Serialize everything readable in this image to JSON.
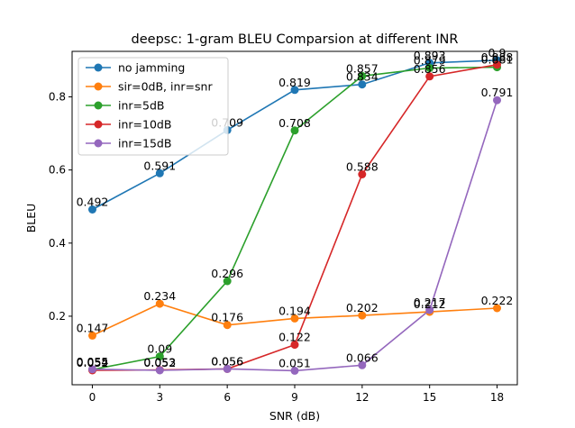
{
  "chart_data": {
    "type": "line",
    "title": "deepsc: 1-gram BLEU Comparsion at different INR",
    "xlabel": "SNR (dB)",
    "ylabel": "BLEU",
    "x": [
      0,
      3,
      6,
      9,
      12,
      15,
      18
    ],
    "xlim": [
      -0.9,
      18.9
    ],
    "ylim": [
      0.0125,
      0.9245
    ],
    "xticks": [
      "0",
      "3",
      "6",
      "9",
      "12",
      "15",
      "18"
    ],
    "yticks": [
      "0.2",
      "0.4",
      "0.6",
      "0.8"
    ],
    "ytick_values": [
      0.2,
      0.4,
      0.6,
      0.8
    ],
    "grid": false,
    "legend": "top-left",
    "series": [
      {
        "name": "no jamming",
        "color": "#1f77b4",
        "values": [
          0.492,
          0.591,
          0.709,
          0.819,
          0.834,
          0.893,
          0.9
        ],
        "labels": [
          "0.492",
          "0.591",
          "0.709",
          "0.819",
          "0.834",
          "0.893",
          "0.9"
        ]
      },
      {
        "name": "sir=0dB, inr=snr",
        "color": "#ff7f0e",
        "values": [
          0.147,
          0.234,
          0.176,
          0.194,
          0.202,
          0.212,
          0.222
        ],
        "labels": [
          "0.147",
          "0.234",
          "0.176",
          "0.194",
          "0.202",
          "0.212",
          "0.222"
        ]
      },
      {
        "name": "inr=5dB",
        "color": "#2ca02c",
        "values": [
          0.054,
          0.09,
          0.296,
          0.708,
          0.857,
          0.879,
          0.881
        ],
        "labels": [
          "0.054",
          "0.09",
          "0.296",
          "0.708",
          "0.857",
          "0.879",
          "0.881"
        ]
      },
      {
        "name": "inr=10dB",
        "color": "#d62728",
        "values": [
          0.052,
          0.053,
          0.056,
          0.122,
          0.588,
          0.856,
          0.888
        ],
        "labels": [
          "0.052",
          "0.053",
          "0.056",
          "0.122",
          "0.588",
          "0.856",
          "0.888"
        ]
      },
      {
        "name": "inr=15dB",
        "color": "#9467bd",
        "values": [
          0.055,
          0.052,
          0.056,
          0.051,
          0.066,
          0.217,
          0.791
        ],
        "labels": [
          "0.055",
          "0.052",
          "0.056",
          "0.051",
          "0.066",
          "0.217",
          "0.791"
        ]
      }
    ]
  }
}
